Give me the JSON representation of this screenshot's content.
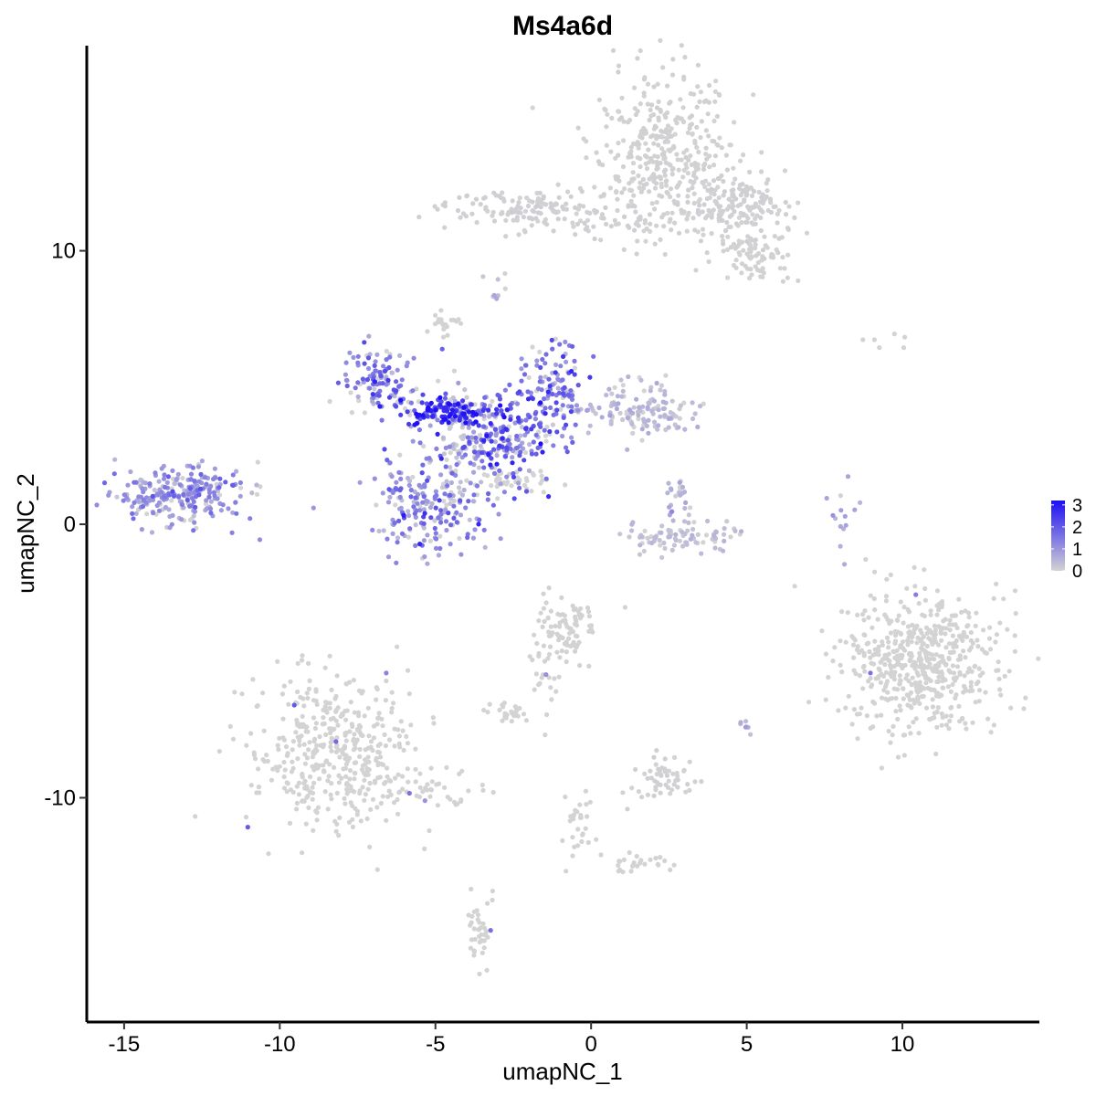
{
  "chart_data": {
    "type": "scatter",
    "title": "Ms4a6d",
    "xlabel": "umapNC_1",
    "ylabel": "umapNC_2",
    "xlim": [
      -16.2,
      14.4
    ],
    "ylim": [
      -18.2,
      17.5
    ],
    "x_ticks": [
      -15,
      -10,
      -5,
      0,
      5,
      10
    ],
    "x_tick_labels": [
      "-15",
      "-10",
      "-5",
      "0",
      "5",
      "10"
    ],
    "y_ticks": [
      -10,
      0,
      10
    ],
    "y_tick_labels": [
      "-10",
      "0",
      "10"
    ],
    "grid": false,
    "legend": {
      "placement": "right",
      "type": "colorbar",
      "min": 0,
      "max": 3.2,
      "ticks": [
        0,
        1,
        2,
        3
      ],
      "tick_labels": [
        "0",
        "1",
        "2",
        "3"
      ],
      "low_color": "#d3d3d3",
      "high_color": "#1e0ff5"
    },
    "point_color_low": "#d3d3d3",
    "point_color_high": "#1e0ff5",
    "clusters": [
      {
        "id": "top-right-cluster",
        "center": [
          2.3,
          13.5
        ],
        "spread": [
          1.2,
          1.5
        ],
        "count": 380,
        "expression": 0.03
      },
      {
        "id": "top-right-arm",
        "center": [
          4.8,
          11.6
        ],
        "spread": [
          0.9,
          0.6
        ],
        "count": 160,
        "expression": 0.05
      },
      {
        "id": "top-right-tail",
        "center": [
          5.2,
          9.7
        ],
        "spread": [
          0.7,
          0.5
        ],
        "count": 70,
        "expression": 0.02
      },
      {
        "id": "top-left-bar",
        "center": [
          -2.3,
          11.6
        ],
        "spread": [
          1.1,
          0.35
        ],
        "count": 110,
        "expression": 0.05
      },
      {
        "id": "top-bridge",
        "center": [
          0.5,
          11.0
        ],
        "spread": [
          1.4,
          0.3
        ],
        "count": 60,
        "expression": 0.05
      },
      {
        "id": "small-top-speck",
        "center": [
          -3.0,
          8.7
        ],
        "spread": [
          0.15,
          0.3
        ],
        "count": 8,
        "expression": 0.4
      },
      {
        "id": "center-top-blob",
        "center": [
          -4.7,
          7.3
        ],
        "spread": [
          0.25,
          0.2
        ],
        "count": 20,
        "expression": 0.0
      },
      {
        "id": "center-left-arm",
        "center": [
          -6.8,
          5.2
        ],
        "spread": [
          0.6,
          0.6
        ],
        "count": 110,
        "expression": 1.3
      },
      {
        "id": "center-dark-band",
        "center": [
          -4.6,
          4.1
        ],
        "spread": [
          0.9,
          0.3
        ],
        "count": 150,
        "expression": 2.4
      },
      {
        "id": "center-core",
        "center": [
          -3.0,
          3.2
        ],
        "spread": [
          0.9,
          0.9
        ],
        "count": 230,
        "expression": 1.6
      },
      {
        "id": "center-upper-right",
        "center": [
          -1.2,
          5.0
        ],
        "spread": [
          0.55,
          0.9
        ],
        "count": 120,
        "expression": 1.4
      },
      {
        "id": "center-right-lobe",
        "center": [
          1.5,
          4.2
        ],
        "spread": [
          1.0,
          0.5
        ],
        "count": 140,
        "expression": 0.4
      },
      {
        "id": "center-lower-lobe",
        "center": [
          -5.2,
          0.7
        ],
        "spread": [
          0.8,
          0.9
        ],
        "count": 200,
        "expression": 1.2
      },
      {
        "id": "center-streak",
        "center": [
          -2.4,
          1.5
        ],
        "spread": [
          0.7,
          0.3
        ],
        "count": 40,
        "expression": 0.0
      },
      {
        "id": "center-gray-stem",
        "center": [
          -4.3,
          2.5
        ],
        "spread": [
          0.3,
          1.2
        ],
        "count": 60,
        "expression": 0.2
      },
      {
        "id": "left-cluster",
        "center": [
          -13.2,
          1.1
        ],
        "spread": [
          1.0,
          0.55
        ],
        "count": 260,
        "expression": 1.0
      },
      {
        "id": "small-ring",
        "center": [
          2.9,
          -0.4
        ],
        "spread": [
          1.0,
          0.3
        ],
        "count": 90,
        "expression": 0.3
      },
      {
        "id": "small-ring-top",
        "center": [
          2.9,
          0.8
        ],
        "spread": [
          0.3,
          0.4
        ],
        "count": 25,
        "expression": 0.6
      },
      {
        "id": "right-speck-line",
        "center": [
          8.1,
          0.3
        ],
        "spread": [
          0.2,
          0.6
        ],
        "count": 14,
        "expression": 0.6
      },
      {
        "id": "right-cluster",
        "center": [
          10.6,
          -5.0
        ],
        "spread": [
          1.2,
          1.3
        ],
        "count": 560,
        "expression": 0.0
      },
      {
        "id": "bottom-left-cluster",
        "center": [
          -8.3,
          -8.3
        ],
        "spread": [
          1.3,
          1.4
        ],
        "count": 420,
        "expression": 0.0
      },
      {
        "id": "bottom-left-tail",
        "center": [
          -5.6,
          -9.7
        ],
        "spread": [
          1.0,
          0.4
        ],
        "count": 50,
        "expression": 0.0
      },
      {
        "id": "middle-bottom-cluster",
        "center": [
          -0.8,
          -3.8
        ],
        "spread": [
          0.5,
          0.6
        ],
        "count": 90,
        "expression": 0.01
      },
      {
        "id": "middle-bottom-streak",
        "center": [
          -1.5,
          -5.7
        ],
        "spread": [
          0.3,
          0.7
        ],
        "count": 20,
        "expression": 0.0
      },
      {
        "id": "middle-bottom-small",
        "center": [
          -2.5,
          -6.9
        ],
        "spread": [
          0.35,
          0.2
        ],
        "count": 25,
        "expression": 0.0
      },
      {
        "id": "lower-center-cluster",
        "center": [
          2.3,
          -9.3
        ],
        "spread": [
          0.5,
          0.4
        ],
        "count": 55,
        "expression": 0.05
      },
      {
        "id": "lower-speck",
        "center": [
          5.0,
          -7.4
        ],
        "spread": [
          0.1,
          0.2
        ],
        "count": 8,
        "expression": 0.5
      },
      {
        "id": "bottom-stem",
        "center": [
          -0.4,
          -11.0
        ],
        "spread": [
          0.25,
          0.8
        ],
        "count": 30,
        "expression": 0.0
      },
      {
        "id": "bottom-stem-arm",
        "center": [
          1.5,
          -12.4
        ],
        "spread": [
          0.6,
          0.2
        ],
        "count": 25,
        "expression": 0.0
      },
      {
        "id": "bottom-far-cluster",
        "center": [
          -3.5,
          -14.8
        ],
        "spread": [
          0.25,
          0.6
        ],
        "count": 40,
        "expression": 0.0
      },
      {
        "id": "far-speck-top-right",
        "center": [
          9.5,
          6.7
        ],
        "spread": [
          0.4,
          0.15
        ],
        "count": 6,
        "expression": 0.0
      }
    ]
  }
}
